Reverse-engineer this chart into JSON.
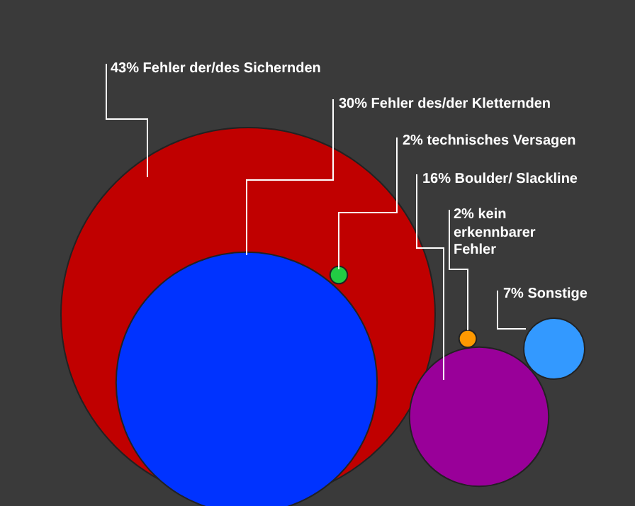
{
  "chart_data": {
    "type": "other",
    "categories": [
      "Fehler der/des Sichernden",
      "Fehler des/der Kletternden",
      "technisches Versagen",
      "Boulder/ Slackline",
      "kein erkennbarer Fehler",
      "Sonstige"
    ],
    "values": [
      43,
      30,
      2,
      16,
      2,
      7
    ],
    "value_labels": [
      "43%",
      "30%",
      "2%",
      "16%",
      "2%",
      "7%"
    ],
    "colors": [
      "#c00000",
      "#0033ff",
      "#22cc44",
      "#990099",
      "#ff9900",
      "#3399ff"
    ]
  }
}
